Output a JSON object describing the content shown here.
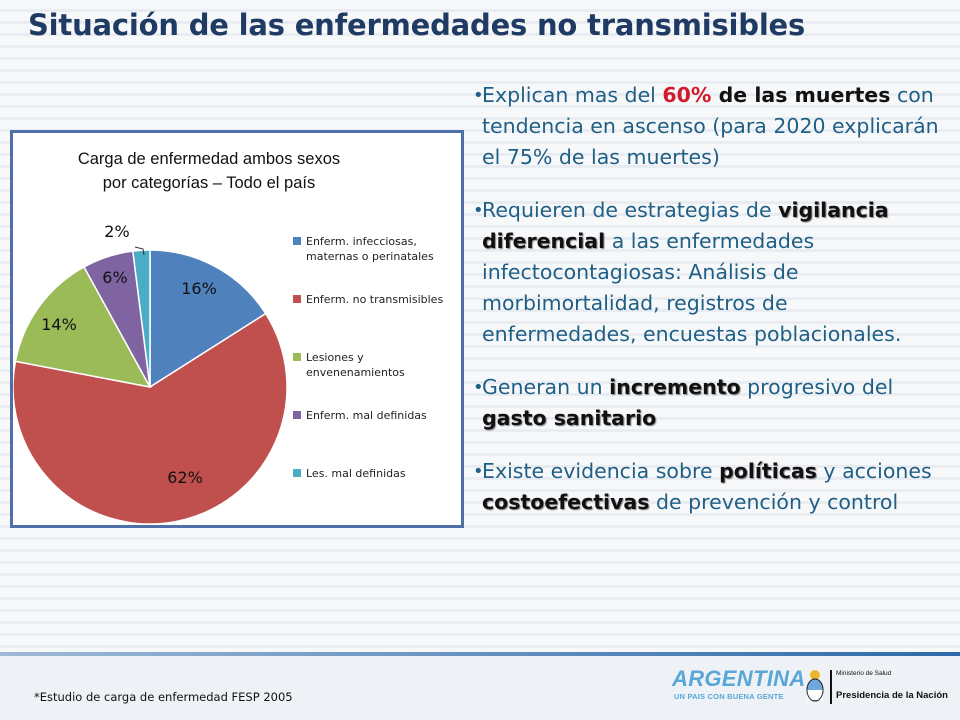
{
  "slide": {
    "title": "Situación de las enfermedades no transmisibles"
  },
  "chart_data": {
    "type": "pie",
    "title": "Carga de enfermedad ambos sexos por categorías – Todo el país",
    "title_lines": [
      "Carga de enfermedad ambos sexos",
      "por categorías – Todo el país"
    ],
    "slices": [
      {
        "label": "Enferm. infecciosas, maternas o perinatales",
        "legend_lines": [
          "Enferm. infecciosas,",
          "maternas o perinatales"
        ],
        "value": 16,
        "value_label": "16%",
        "color": "#4f81bd"
      },
      {
        "label": "Enferm. no transmisibles",
        "legend_lines": [
          "Enferm. no transmisibles"
        ],
        "value": 62,
        "value_label": "62%",
        "color": "#c0504d"
      },
      {
        "label": "Lesiones y envenenamientos",
        "legend_lines": [
          "Lesiones y",
          "envenenamientos"
        ],
        "value": 14,
        "value_label": "14%",
        "color": "#9bbb59"
      },
      {
        "label": "Enferm. mal definidas",
        "legend_lines": [
          "Enferm. mal definidas"
        ],
        "value": 6,
        "value_label": "6%",
        "color": "#8064a2"
      },
      {
        "label": "Les. mal definidas",
        "legend_lines": [
          "Les. mal definidas"
        ],
        "value": 2,
        "value_label": "2%",
        "color": "#4bacc6"
      }
    ],
    "start_angle_deg": 0,
    "direction": "clockwise",
    "legend_position": "right"
  },
  "bullets": [
    {
      "parts": [
        {
          "text": "Explican mas del ",
          "style": "normal"
        },
        {
          "text": "60%",
          "style": "red"
        },
        {
          "text": " de las muertes",
          "style": "bold"
        },
        {
          "text": " con tendencia en ascenso (para 2020 explicarán el 75% de las muertes)",
          "style": "normal"
        }
      ]
    },
    {
      "parts": [
        {
          "text": "Requieren de estrategias de ",
          "style": "normal"
        },
        {
          "text": "vigilancia diferencial",
          "style": "bold-shadow"
        },
        {
          "text": " a las enfermedades  infectocontagiosas: Análisis de morbimortalidad, registros de enfermedades,  encuestas poblacionales.",
          "style": "normal"
        }
      ]
    },
    {
      "parts": [
        {
          "text": " Generan un ",
          "style": "normal"
        },
        {
          "text": "incremento",
          "style": "bold-shadow"
        },
        {
          "text": " progresivo del ",
          "style": "normal"
        },
        {
          "text": "gasto sanitario",
          "style": "bold-shadow"
        }
      ]
    },
    {
      "parts": [
        {
          "text": "Existe evidencia sobre ",
          "style": "normal"
        },
        {
          "text": "políticas",
          "style": "bold-shadow"
        },
        {
          "text": " y acciones ",
          "style": "normal"
        },
        {
          "text": "costoefectivas",
          "style": "bold-shadow"
        },
        {
          "text": " de prevención y control",
          "style": "normal"
        }
      ]
    }
  ],
  "footer": {
    "source_note": "*Estudio de carga de enfermedad FESP 2005",
    "logo_word": "ARGENTINA",
    "logo_tagline": "UN PAIS CON BUENA GENTE",
    "ministry_name": "Ministerio de Salud",
    "presidency": "Presidencia de la Nación"
  },
  "colors": {
    "title": "#1f3b63",
    "bullet_text": "#1f5f86",
    "highlight_red": "#d3192a",
    "panel_border": "#4f6fa8"
  }
}
